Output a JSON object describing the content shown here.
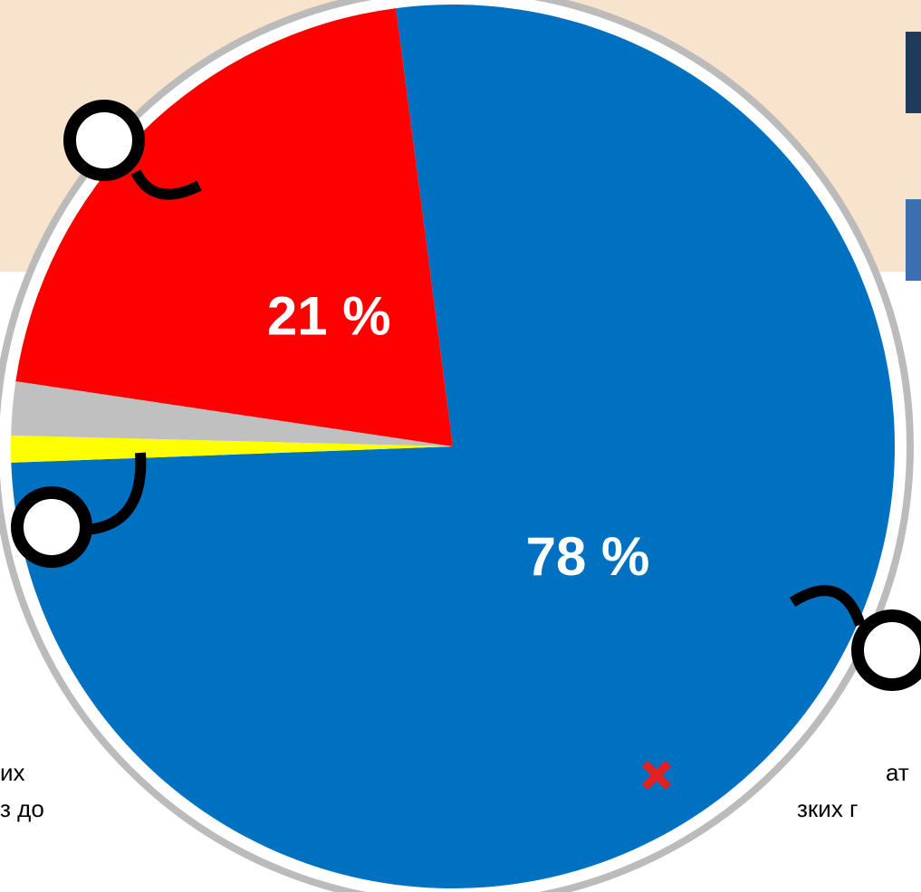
{
  "chart_data": {
    "type": "pie",
    "values": [
      78,
      1,
      2,
      21
    ],
    "value_labels": [
      "78 %",
      null,
      null,
      "21 %"
    ],
    "colors": [
      "#0070c0",
      "#ffff00",
      "#c0c0c0",
      "#ff0000"
    ]
  },
  "background_text": [
    "их",
    "з до",
    "ат",
    "зких г"
  ]
}
